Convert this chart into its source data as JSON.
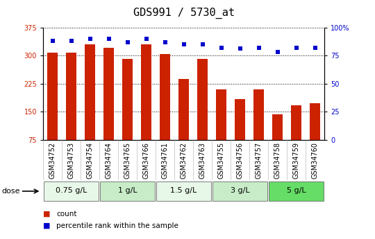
{
  "title": "GDS991 / 5730_at",
  "samples": [
    "GSM34752",
    "GSM34753",
    "GSM34754",
    "GSM34764",
    "GSM34765",
    "GSM34766",
    "GSM34761",
    "GSM34762",
    "GSM34763",
    "GSM34755",
    "GSM34756",
    "GSM34757",
    "GSM34758",
    "GSM34759",
    "GSM34760"
  ],
  "bar_values": [
    308,
    307,
    330,
    320,
    291,
    330,
    304,
    238,
    291,
    209,
    183,
    210,
    143,
    168,
    172
  ],
  "dot_values": [
    88,
    88,
    90,
    90,
    87,
    90,
    87,
    85,
    85,
    82,
    81,
    82,
    78,
    82,
    82
  ],
  "bar_color": "#cc2200",
  "dot_color": "#0000cc",
  "ymin": 75,
  "ymax": 375,
  "yticks": [
    75,
    150,
    225,
    300,
    375
  ],
  "y2min": 0,
  "y2max": 100,
  "y2ticks": [
    0,
    25,
    50,
    75,
    100
  ],
  "groups": [
    {
      "label": "0.75 g/L",
      "start": 0,
      "end": 3,
      "color": "#e8f8e8"
    },
    {
      "label": "1 g/L",
      "start": 3,
      "end": 6,
      "color": "#c8ecc8"
    },
    {
      "label": "1.5 g/L",
      "start": 6,
      "end": 9,
      "color": "#e8f8e8"
    },
    {
      "label": "3 g/L",
      "start": 9,
      "end": 12,
      "color": "#c8ecc8"
    },
    {
      "label": "5 g/L",
      "start": 12,
      "end": 15,
      "color": "#66dd66"
    }
  ],
  "xtick_bg_color": "#d0d0d0",
  "plot_bg_color": "#ffffff",
  "dose_label": "dose",
  "legend_bar_label": "count",
  "legend_dot_label": "percentile rank within the sample",
  "title_fontsize": 11,
  "tick_fontsize": 7,
  "label_fontsize": 8,
  "group_fontsize": 8
}
